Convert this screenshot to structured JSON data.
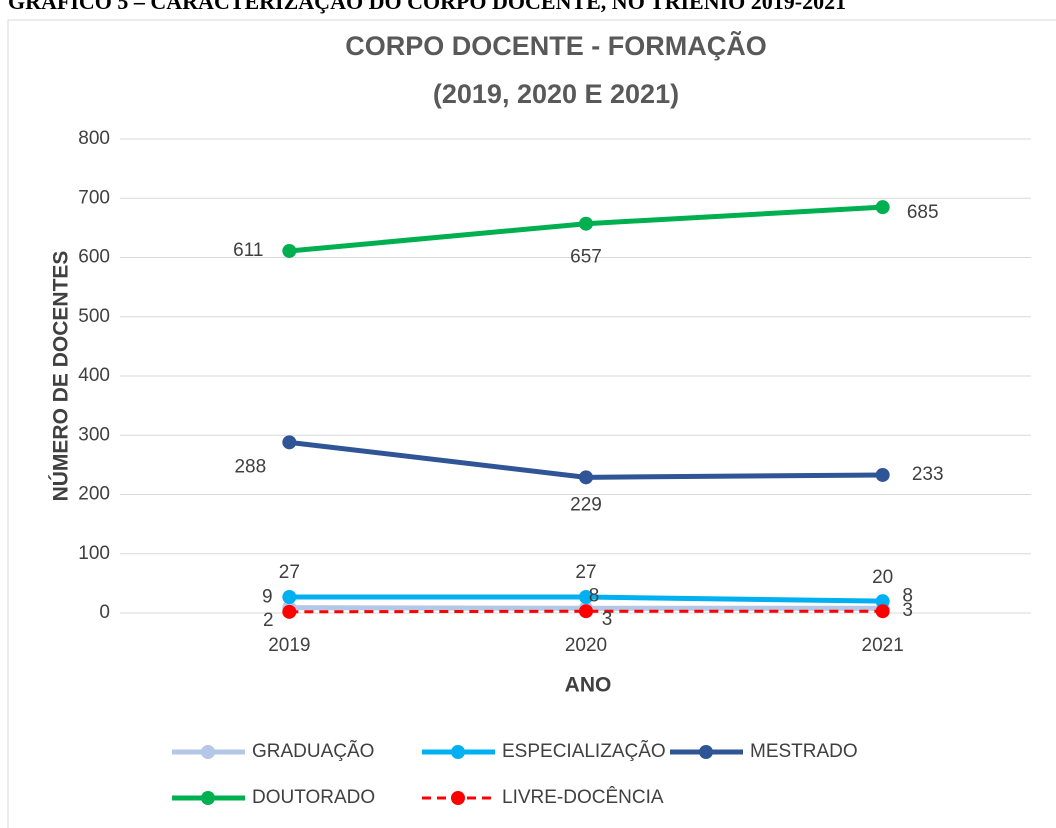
{
  "caption": "GRÁFICO 5 – CARACTERIZAÇÃO DO CORPO DOCENTE, NO TRIÊNIO 2019-2021",
  "chart_data": {
    "type": "line",
    "title": [
      "CORPO DOCENTE - FORMAÇÃO",
      "(2019, 2020 E 2021)"
    ],
    "x_label": "ANO",
    "y_label": "NÚMERO DE DOCENTES",
    "categories": [
      "2019",
      "2020",
      "2021"
    ],
    "ylim": [
      0,
      800
    ],
    "yticks": [
      0,
      100,
      200,
      300,
      400,
      500,
      600,
      700,
      800
    ],
    "grid": true,
    "legend": "bottom",
    "series": [
      {
        "name": "GRADUAÇÃO",
        "color": "#b4c7e7",
        "values": [
          9,
          8,
          8
        ]
      },
      {
        "name": "ESPECIALIZAÇÃO",
        "color": "#00b0f0",
        "values": [
          27,
          27,
          20
        ]
      },
      {
        "name": "MESTRADO",
        "color": "#2f5597",
        "values": [
          288,
          229,
          233
        ]
      },
      {
        "name": "DOUTORADO",
        "color": "#00b050",
        "values": [
          611,
          657,
          685
        ]
      },
      {
        "name": "LIVRE-DOCÊNCIA",
        "color": "#ff0000",
        "dashed": true,
        "values": [
          2,
          3,
          3
        ]
      }
    ]
  }
}
